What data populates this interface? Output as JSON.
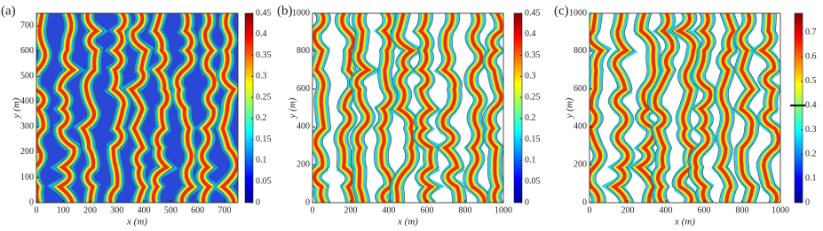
{
  "chart_data": [
    {
      "type": "heatmap",
      "panel_label": "(a)",
      "x_label": "x (m)",
      "y_label": "y (m)",
      "xlim": [
        0,
        750
      ],
      "xticks": [
        0,
        100,
        200,
        300,
        400,
        500,
        600,
        700
      ],
      "ylim": [
        0,
        750
      ],
      "yticks": [
        0,
        100,
        200,
        300,
        400,
        500,
        600,
        700
      ],
      "colormap": "jet",
      "clim": [
        0,
        0.45
      ],
      "cticks": [
        0,
        0.05,
        0.1,
        0.15,
        0.2,
        0.25,
        0.3,
        0.35,
        0.4,
        0.45
      ]
    },
    {
      "type": "heatmap",
      "panel_label": "(b)",
      "x_label": "x (m)",
      "y_label": "y (m)",
      "xlim": [
        0,
        1000
      ],
      "xticks": [
        0,
        200,
        400,
        600,
        800,
        1000
      ],
      "ylim": [
        0,
        1000
      ],
      "yticks": [
        0,
        200,
        400,
        600,
        800,
        1000
      ],
      "colormap": "jet",
      "clim": [
        0,
        0.45
      ],
      "cticks": [
        0,
        0.05,
        0.1,
        0.15,
        0.2,
        0.25,
        0.3,
        0.35,
        0.4,
        0.45
      ]
    },
    {
      "type": "heatmap",
      "panel_label": "(c)",
      "x_label": "x (m)",
      "y_label": "y (m)",
      "xlim": [
        0,
        1000
      ],
      "xticks": [
        0,
        200,
        400,
        600,
        800,
        1000
      ],
      "ylim": [
        0,
        1000
      ],
      "yticks": [
        0,
        200,
        400,
        600,
        800,
        1000
      ],
      "colormap": "jet",
      "clim": [
        0,
        0.78
      ],
      "cticks": [
        0,
        0.1,
        0.2,
        0.3,
        0.4,
        0.5,
        0.6,
        0.7
      ],
      "colorbar_marker": 0.4
    }
  ]
}
